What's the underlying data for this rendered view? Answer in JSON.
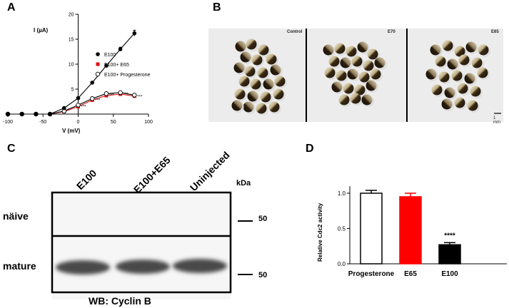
{
  "panels": {
    "a": "A",
    "b": "B",
    "c": "C",
    "d": "D"
  },
  "panel_a": {
    "ylabel": "I (µA)",
    "xlabel": "V (mV)",
    "x_ticks": [
      "-100",
      "-50",
      "0",
      "50",
      "100"
    ],
    "y_ticks": [
      "5",
      "10",
      "15",
      "20"
    ],
    "legend": [
      "E100",
      "E100+ E65",
      "E100+ Progesterone"
    ],
    "significance": "***"
  },
  "panel_b": {
    "labels": [
      "Control",
      "E70",
      "E65"
    ],
    "scale_bar": "1 mm"
  },
  "panel_c": {
    "lanes": [
      "E100",
      "E100+E65",
      "Uninjected"
    ],
    "kda_label": "kDa",
    "rows": [
      "näive",
      "mature"
    ],
    "markers": [
      "50",
      "50"
    ],
    "caption": "WB: Cyclin B"
  },
  "panel_d": {
    "ylabel": "Relative Cdc2 activity",
    "significance": "****"
  },
  "chart_data": [
    {
      "type": "line",
      "xlim": [
        -100,
        100
      ],
      "ylim": [
        0,
        20
      ],
      "series": [
        {
          "name": "E100",
          "color": "#000000",
          "marker": "filled-circle",
          "x": [
            -100,
            -80,
            -60,
            -40,
            -20,
            0,
            20,
            40,
            60,
            80
          ],
          "y": [
            0,
            0,
            0,
            0,
            1.2,
            3.2,
            6.3,
            9.7,
            13.0,
            16.2
          ]
        },
        {
          "name": "E100+ E65",
          "color": "#e01010",
          "marker": "square",
          "x": [
            -100,
            -80,
            -60,
            -40,
            -20,
            0,
            20,
            40,
            60,
            80
          ],
          "y": [
            0,
            0,
            0,
            0,
            0.5,
            1.5,
            2.8,
            3.7,
            4.0,
            3.6
          ]
        },
        {
          "name": "E100+ Progesterone",
          "color": "#000000",
          "marker": "open-circle",
          "x": [
            -100,
            -80,
            -60,
            -40,
            -20,
            0,
            20,
            40,
            60,
            80
          ],
          "y": [
            0,
            0,
            0,
            0,
            0.6,
            1.8,
            3.1,
            4.1,
            4.3,
            3.8
          ]
        }
      ],
      "error_bars": {
        "E100": [
          0,
          0,
          0,
          0,
          0.1,
          0.2,
          0.2,
          0.3,
          0.4,
          0.6
        ]
      },
      "significance_x": [
        0,
        20,
        40,
        60,
        80
      ]
    },
    {
      "type": "bar",
      "categories": [
        "Progesterone",
        "E65",
        "E100"
      ],
      "values": [
        1.0,
        0.95,
        0.27
      ],
      "errors": [
        0.04,
        0.05,
        0.03
      ],
      "colors": [
        "#ffffff",
        "#ff0000",
        "#000000"
      ],
      "ylim": [
        0,
        1.1
      ],
      "y_ticks": [
        "0.0",
        "0.5",
        "1.0"
      ]
    }
  ]
}
